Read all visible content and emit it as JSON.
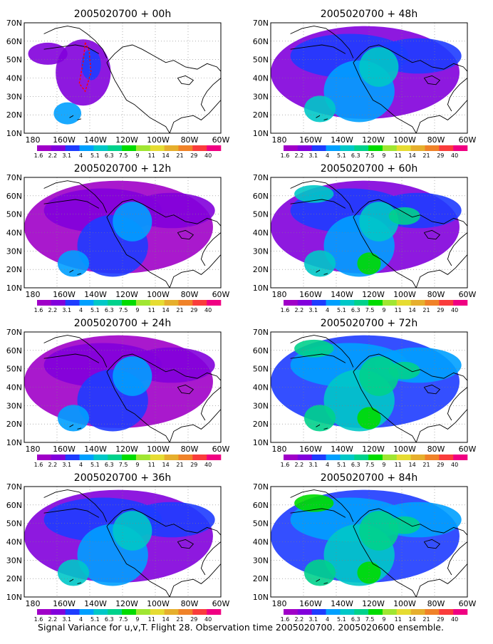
{
  "caption": "Signal Variance for u,v,T. Flight 28. Observation time 2005020700. 2005020600 ensemble.",
  "colorbar": {
    "labels": [
      "1.6",
      "2.2",
      "3.1",
      "4",
      "5.1",
      "6.3",
      "7.5",
      "9",
      "11",
      "14",
      "21",
      "29",
      "40"
    ],
    "colors": [
      "#a000c8",
      "#8200dc",
      "#1e3cff",
      "#00a0ff",
      "#00c8c8",
      "#00d28c",
      "#00dc00",
      "#a0e632",
      "#e6dc32",
      "#e6af2d",
      "#f08228",
      "#fa3c3c",
      "#f00082"
    ]
  },
  "axes": {
    "lat_labels": [
      "70N",
      "60N",
      "50N",
      "40N",
      "30N",
      "20N",
      "10N"
    ],
    "lon_labels": [
      "180",
      "160W",
      "140W",
      "120W",
      "100W",
      "80W",
      "60W"
    ]
  },
  "panels": [
    {
      "title": "2005020700 + 00h",
      "lead_hours": 0,
      "intensity": 0.05
    },
    {
      "title": "2005020700 + 48h",
      "lead_hours": 48,
      "intensity": 0.45
    },
    {
      "title": "2005020700 + 12h",
      "lead_hours": 12,
      "intensity": 0.12
    },
    {
      "title": "2005020700 + 60h",
      "lead_hours": 60,
      "intensity": 0.55
    },
    {
      "title": "2005020700 + 24h",
      "lead_hours": 24,
      "intensity": 0.2
    },
    {
      "title": "2005020700 + 72h",
      "lead_hours": 72,
      "intensity": 0.7
    },
    {
      "title": "2005020700 + 36h",
      "lead_hours": 36,
      "intensity": 0.3
    },
    {
      "title": "2005020700 + 84h",
      "lead_hours": 84,
      "intensity": 0.85
    }
  ]
}
